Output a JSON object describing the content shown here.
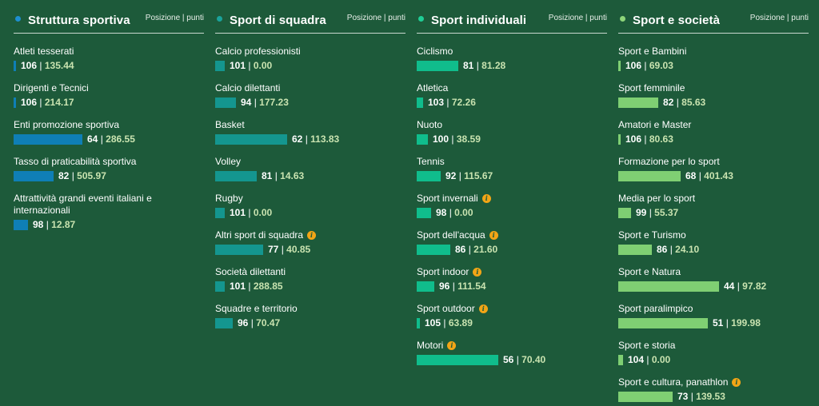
{
  "info_symbol": "i",
  "separator": "|",
  "chart_data": [
    {
      "type": "bar",
      "title": "Struttura sportiva",
      "subtitle": "Posizione | punti",
      "color": "#0f7fb6",
      "dot_color": "#1e8fd0",
      "items": [
        {
          "label": "Atleti tesserati",
          "position": 106,
          "points": "135.44",
          "info": false
        },
        {
          "label": "Dirigenti e Tecnici",
          "position": 106,
          "points": "214.17",
          "info": false
        },
        {
          "label": "Enti promozione sportiva",
          "position": 64,
          "points": "286.55",
          "info": false
        },
        {
          "label": "Tasso di praticabilità sportiva",
          "position": 82,
          "points": "505.97",
          "info": false
        },
        {
          "label": "Attrattività grandi eventi italiani e internazionali",
          "position": 98,
          "points": "12.87",
          "info": false
        }
      ]
    },
    {
      "type": "bar",
      "title": "Sport di squadra",
      "subtitle": "Posizione | punti",
      "color": "#14968f",
      "dot_color": "#1aa39b",
      "items": [
        {
          "label": "Calcio professionisti",
          "position": 101,
          "points": "0.00",
          "info": false
        },
        {
          "label": "Calcio dilettanti",
          "position": 94,
          "points": "177.23",
          "info": false
        },
        {
          "label": "Basket",
          "position": 62,
          "points": "113.83",
          "info": false
        },
        {
          "label": "Volley",
          "position": 81,
          "points": "14.63",
          "info": false
        },
        {
          "label": "Rugby",
          "position": 101,
          "points": "0.00",
          "info": false
        },
        {
          "label": "Altri sport di squadra",
          "position": 77,
          "points": "40.85",
          "info": true
        },
        {
          "label": "Società dilettanti",
          "position": 101,
          "points": "288.85",
          "info": false
        },
        {
          "label": "Squadre e territorio",
          "position": 96,
          "points": "70.47",
          "info": false
        }
      ]
    },
    {
      "type": "bar",
      "title": "Sport individuali",
      "subtitle": "Posizione | punti",
      "color": "#10bd8c",
      "dot_color": "#1fce96",
      "items": [
        {
          "label": "Ciclismo",
          "position": 81,
          "points": "81.28",
          "info": false
        },
        {
          "label": "Atletica",
          "position": 103,
          "points": "72.26",
          "info": false
        },
        {
          "label": "Nuoto",
          "position": 100,
          "points": "38.59",
          "info": false
        },
        {
          "label": "Tennis",
          "position": 92,
          "points": "115.67",
          "info": false
        },
        {
          "label": "Sport invernali",
          "position": 98,
          "points": "0.00",
          "info": true
        },
        {
          "label": "Sport dell'acqua",
          "position": 86,
          "points": "21.60",
          "info": true
        },
        {
          "label": "Sport indoor",
          "position": 96,
          "points": "111.54",
          "info": true
        },
        {
          "label": "Sport outdoor",
          "position": 105,
          "points": "63.89",
          "info": true
        },
        {
          "label": "Motori",
          "position": 56,
          "points": "70.40",
          "info": true
        }
      ]
    },
    {
      "type": "bar",
      "title": "Sport e società",
      "subtitle": "Posizione | punti",
      "color": "#7fcf73",
      "dot_color": "#8ed57a",
      "items": [
        {
          "label": "Sport e Bambini",
          "position": 106,
          "points": "69.03",
          "info": false
        },
        {
          "label": "Sport femminile",
          "position": 82,
          "points": "85.63",
          "info": false
        },
        {
          "label": "Amatori e Master",
          "position": 106,
          "points": "80.63",
          "info": false
        },
        {
          "label": "Formazione per lo sport",
          "position": 68,
          "points": "401.43",
          "info": false
        },
        {
          "label": "Media per lo sport",
          "position": 99,
          "points": "55.37",
          "info": false
        },
        {
          "label": "Sport e Turismo",
          "position": 86,
          "points": "24.10",
          "info": false
        },
        {
          "label": "Sport e Natura",
          "position": 44,
          "points": "97.82",
          "info": false
        },
        {
          "label": "Sport paralimpico",
          "position": 51,
          "points": "199.98",
          "info": false
        },
        {
          "label": "Sport e storia",
          "position": 104,
          "points": "0.00",
          "info": false
        },
        {
          "label": "Sport e cultura, panathlon",
          "position": 73,
          "points": "139.53",
          "info": true
        }
      ]
    }
  ]
}
